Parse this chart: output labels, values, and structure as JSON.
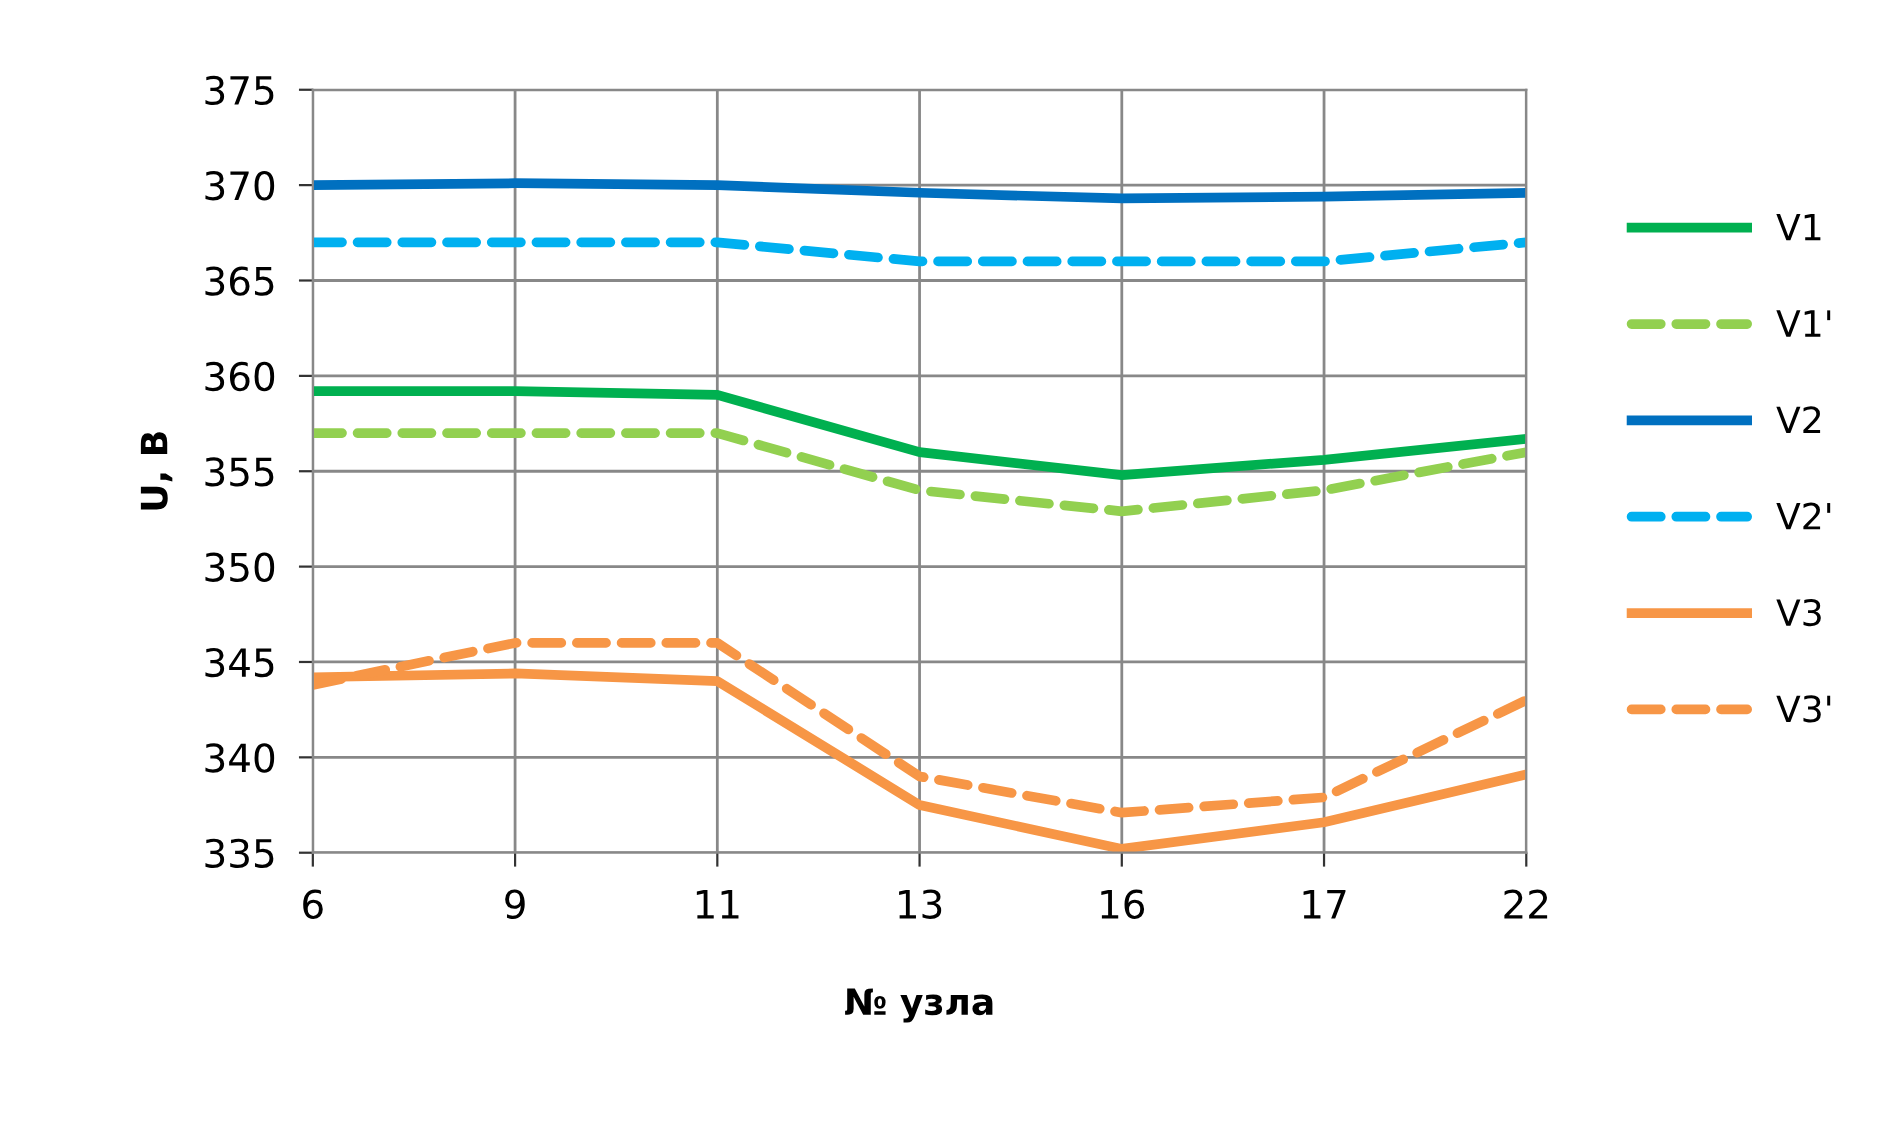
{
  "chart_data": {
    "type": "line",
    "xlabel": "№ узла",
    "ylabel": "U, В",
    "categories": [
      "6",
      "9",
      "11",
      "13",
      "16",
      "17",
      "22"
    ],
    "series": [
      {
        "name": "V1",
        "color": "#00b050",
        "line_style": "solid",
        "values": [
          359.2,
          359.2,
          359.0,
          356.0,
          354.8,
          355.6,
          356.7
        ]
      },
      {
        "name": "V1'",
        "color": "#92d050",
        "line_style": "dashed",
        "values": [
          357.0,
          357.0,
          357.0,
          354.0,
          352.9,
          354.0,
          356.0
        ]
      },
      {
        "name": "V2",
        "color": "#0070c0",
        "line_style": "solid",
        "values": [
          370.0,
          370.1,
          370.0,
          369.6,
          369.3,
          369.4,
          369.6
        ]
      },
      {
        "name": "V2'",
        "color": "#00b0f0",
        "line_style": "dashed",
        "values": [
          367.0,
          367.0,
          367.0,
          366.0,
          366.0,
          366.0,
          367.0
        ]
      },
      {
        "name": "V3",
        "color": "#f79646",
        "line_style": "solid",
        "values": [
          344.2,
          344.4,
          344.0,
          337.5,
          335.2,
          336.6,
          339.1
        ]
      },
      {
        "name": "V3'",
        "color": "#f79646",
        "line_style": "dashed",
        "values": [
          343.8,
          346.0,
          346.0,
          339.0,
          337.1,
          337.9,
          343.0
        ]
      }
    ],
    "ylim": [
      335,
      375
    ],
    "yticks": [
      335,
      340,
      345,
      350,
      355,
      360,
      365,
      370,
      375
    ],
    "grid": true,
    "legend": "right",
    "marker": "none"
  }
}
